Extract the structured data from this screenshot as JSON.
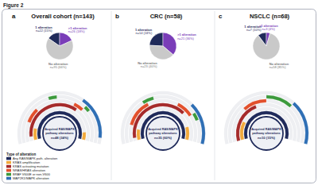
{
  "figure": {
    "title": "Figure 2",
    "legend_title": "Type of alteration",
    "tracks": [
      {
        "name": "Any RAS/MAPK path. alteration",
        "color": "#1f2a5a"
      },
      {
        "name": "KRAS amplification",
        "color": "#f2a93b"
      },
      {
        "name": "KRAS activating mutation",
        "color": "#a52a2a"
      },
      {
        "name": "NRAS/HRAS alteration",
        "color": "#e2502c"
      },
      {
        "name": "BRAF V600E or non-V600",
        "color": "#3c9a3c"
      },
      {
        "name": "MAP2K1/MAPK alteration",
        "color": "#2f6fb5"
      }
    ]
  },
  "chart_data": [
    {
      "type": "pie",
      "label": "a",
      "title": "Overall cohort (n=143)",
      "categories": [
        "1 alteration",
        ">1 alteration",
        "No alteration"
      ],
      "values": [
        22,
        26,
        95
      ],
      "value_labels": [
        "n=22 (15%)",
        "n=26 (18%)",
        "n=95 (66%)"
      ],
      "colors": [
        "#1f2a5a",
        "#7a3db8",
        "#c9c9c9"
      ]
    },
    {
      "type": "radial_oncoprint",
      "patients": 48,
      "center_lines": [
        "Acquired RAS/MAPK",
        "pathway alterations"
      ],
      "center_label": "n=48 (34%)",
      "tracks": [
        [
          [
            0,
            48
          ]
        ],
        [
          [
            0,
            6
          ],
          [
            44,
            4
          ]
        ],
        [
          [
            2,
            30
          ]
        ],
        [
          [
            8,
            6
          ],
          [
            30,
            4
          ]
        ],
        [
          [
            20,
            3
          ],
          [
            34,
            2
          ]
        ],
        [
          [
            32,
            14
          ]
        ]
      ]
    },
    {
      "type": "pie",
      "label": "b",
      "title": "CRC (n=58)",
      "categories": [
        "1 alteration",
        ">1 alteration",
        "No alteration"
      ],
      "values": [
        14,
        21,
        23
      ],
      "value_labels": [
        "n=14 (24%)",
        "n=21 (36%)",
        "n=23 (40%)"
      ],
      "colors": [
        "#1f2a5a",
        "#7a3db8",
        "#c9c9c9"
      ]
    },
    {
      "type": "radial_oncoprint",
      "patients": 35,
      "center_lines": [
        "Acquired RAS/MAPK",
        "pathway alterations"
      ],
      "center_label": "n=35 (60%)",
      "tracks": [
        [
          [
            0,
            35
          ]
        ],
        [
          [
            0,
            4
          ],
          [
            30,
            5
          ]
        ],
        [
          [
            1,
            24
          ]
        ],
        [
          [
            5,
            8
          ],
          [
            22,
            5
          ]
        ],
        [
          [
            12,
            3
          ],
          [
            27,
            2
          ]
        ],
        [
          [
            25,
            10
          ]
        ]
      ]
    },
    {
      "type": "pie",
      "label": "c",
      "title": "NSCLC (n=68)",
      "categories": [
        "1 alteration",
        ">1 alteration",
        "No alteration"
      ],
      "values": [
        7,
        3,
        58
      ],
      "value_labels": [
        "n=7 (10%)",
        "n=3 (4%)",
        "n=58 (85%)"
      ],
      "colors": [
        "#1f2a5a",
        "#7a3db8",
        "#c9c9c9"
      ]
    },
    {
      "type": "radial_oncoprint",
      "patients": 10,
      "center_lines": [
        "Acquired RAS/MAPK",
        "pathway alterations"
      ],
      "center_label": "n=10 (15%)",
      "tracks": [
        [
          [
            0,
            10
          ]
        ],
        [
          [
            0,
            2
          ]
        ],
        [
          [
            0,
            4
          ]
        ],
        [
          [
            3,
            2
          ]
        ],
        [
          [
            5,
            2
          ]
        ],
        [
          [
            7,
            3
          ]
        ]
      ]
    }
  ]
}
